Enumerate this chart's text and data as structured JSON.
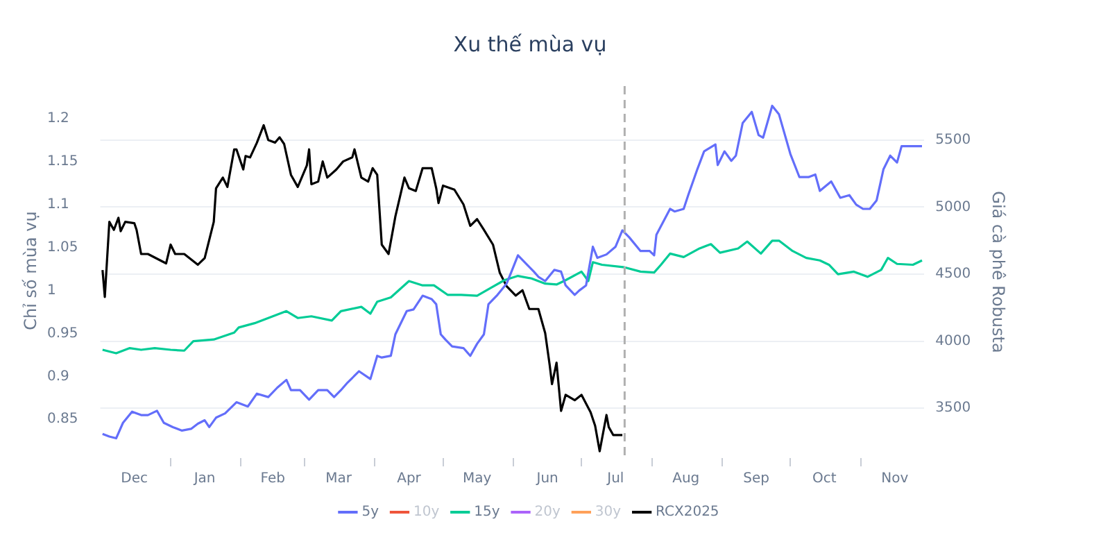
{
  "chart_data": {
    "type": "line",
    "title": "Xu thế mùa vụ",
    "ylabel": "Chỉ số mùa vụ",
    "y2label": "Giá cà phê Robusta",
    "xlim": [
      "2024-12-01",
      "2025-11-29"
    ],
    "xticks": [
      {
        "value": "2024-12-16",
        "label": "Dec"
      },
      {
        "value": "2025-01-01",
        "label": null
      },
      {
        "value": "2025-01-16",
        "label": "Jan"
      },
      {
        "value": "2025-02-01",
        "label": null
      },
      {
        "value": "2025-02-15",
        "label": "Feb"
      },
      {
        "value": "2025-03-01",
        "label": null
      },
      {
        "value": "2025-03-16",
        "label": "Mar"
      },
      {
        "value": "2025-04-01",
        "label": null
      },
      {
        "value": "2025-04-16",
        "label": "Apr"
      },
      {
        "value": "2025-05-01",
        "label": null
      },
      {
        "value": "2025-05-16",
        "label": "May"
      },
      {
        "value": "2025-06-01",
        "label": null
      },
      {
        "value": "2025-06-16",
        "label": "Jun"
      },
      {
        "value": "2025-07-01",
        "label": null
      },
      {
        "value": "2025-07-16",
        "label": "Jul"
      },
      {
        "value": "2025-08-01",
        "label": null
      },
      {
        "value": "2025-08-16",
        "label": "Aug"
      },
      {
        "value": "2025-09-01",
        "label": null
      },
      {
        "value": "2025-09-16",
        "label": "Sep"
      },
      {
        "value": "2025-10-01",
        "label": null
      },
      {
        "value": "2025-10-16",
        "label": "Oct"
      },
      {
        "value": "2025-11-01",
        "label": null
      },
      {
        "value": "2025-11-16",
        "label": "Nov"
      }
    ],
    "ylim": [
      0.805,
      1.238
    ],
    "yticks": [
      0.85,
      0.9,
      0.95,
      1,
      1.05,
      1.1,
      1.15,
      1.2
    ],
    "y2lim": [
      3129,
      5902
    ],
    "y2ticks": [
      3500,
      4000,
      4500,
      5000,
      5500
    ],
    "grid": "y",
    "legend": "bottom",
    "marker": "none",
    "line_style": "solid",
    "ref_lines": [
      {
        "axis": "x",
        "value": "2025-07-20",
        "label": null,
        "color": "#b0b0b0",
        "line_style": "dashed"
      }
    ],
    "series": [
      {
        "name": "5y",
        "color": "#636efa",
        "x": [
          "2024-12-02",
          "2024-12-05",
          "2024-12-08",
          "2024-12-11",
          "2024-12-15",
          "2024-12-19",
          "2024-12-22",
          "2024-12-26",
          "2024-12-29",
          "2025-01-02",
          "2025-01-06",
          "2025-01-10",
          "2025-01-13",
          "2025-01-16",
          "2025-01-18",
          "2025-01-21",
          "2025-01-25",
          "2025-01-30",
          "2025-02-04",
          "2025-02-08",
          "2025-02-13",
          "2025-02-17",
          "2025-02-21",
          "2025-02-23",
          "2025-02-27",
          "2025-03-03",
          "2025-03-07",
          "2025-03-11",
          "2025-03-14",
          "2025-03-17",
          "2025-03-20",
          "2025-03-25",
          "2025-03-30",
          "2025-04-02",
          "2025-04-04",
          "2025-04-08",
          "2025-04-10",
          "2025-04-15",
          "2025-04-18",
          "2025-04-22",
          "2025-04-26",
          "2025-04-28",
          "2025-04-30",
          "2025-05-02",
          "2025-05-05",
          "2025-05-10",
          "2025-05-13",
          "2025-05-16",
          "2025-05-19",
          "2025-05-21",
          "2025-05-25",
          "2025-05-29",
          "2025-05-31",
          "2025-06-03",
          "2025-06-07",
          "2025-06-10",
          "2025-06-12",
          "2025-06-15",
          "2025-06-19",
          "2025-06-22",
          "2025-06-24",
          "2025-06-28",
          "2025-06-30",
          "2025-07-03",
          "2025-07-06",
          "2025-07-08",
          "2025-07-12",
          "2025-07-16",
          "2025-07-19",
          "2025-07-22",
          "2025-07-27",
          "2025-07-31",
          "2025-08-02",
          "2025-08-03",
          "2025-08-09",
          "2025-08-11",
          "2025-08-15",
          "2025-08-17",
          "2025-08-21",
          "2025-08-24",
          "2025-08-29",
          "2025-08-30",
          "2025-09-02",
          "2025-09-05",
          "2025-09-07",
          "2025-09-10",
          "2025-09-14",
          "2025-09-17",
          "2025-09-19",
          "2025-09-23",
          "2025-09-26",
          "2025-10-01",
          "2025-10-05",
          "2025-10-09",
          "2025-10-12",
          "2025-10-14",
          "2025-10-19",
          "2025-10-23",
          "2025-10-27",
          "2025-10-30",
          "2025-11-02",
          "2025-11-05",
          "2025-11-08",
          "2025-11-11",
          "2025-11-14",
          "2025-11-17",
          "2025-11-19",
          "2025-11-28"
        ],
        "values": [
          0.833,
          0.83,
          0.828,
          0.846,
          0.859,
          0.855,
          0.855,
          0.86,
          0.846,
          0.841,
          0.837,
          0.839,
          0.845,
          0.849,
          0.841,
          0.852,
          0.857,
          0.87,
          0.865,
          0.88,
          0.876,
          0.887,
          0.896,
          0.884,
          0.884,
          0.873,
          0.884,
          0.884,
          0.876,
          0.884,
          0.893,
          0.906,
          0.897,
          0.924,
          0.922,
          0.924,
          0.949,
          0.976,
          0.978,
          0.994,
          0.99,
          0.984,
          0.949,
          0.943,
          0.935,
          0.933,
          0.924,
          0.938,
          0.949,
          0.984,
          0.995,
          1.008,
          1.021,
          1.041,
          1.03,
          1.022,
          1.016,
          1.011,
          1.024,
          1.022,
          1.006,
          0.995,
          1,
          1.006,
          1.051,
          1.038,
          1.042,
          1.051,
          1.07,
          1.062,
          1.046,
          1.046,
          1.041,
          1.065,
          1.095,
          1.092,
          1.095,
          1.111,
          1.141,
          1.162,
          1.17,
          1.146,
          1.162,
          1.151,
          1.157,
          1.195,
          1.208,
          1.181,
          1.178,
          1.215,
          1.205,
          1.159,
          1.132,
          1.132,
          1.135,
          1.116,
          1.127,
          1.108,
          1.111,
          1.1,
          1.095,
          1.095,
          1.105,
          1.141,
          1.157,
          1.149,
          1.168,
          1.168
        ]
      },
      {
        "name": "10y",
        "color": "#ef553b"
      },
      {
        "name": "15y",
        "color": "#00cc96",
        "x": [
          "2024-12-02",
          "2024-12-08",
          "2024-12-14",
          "2024-12-19",
          "2024-12-25",
          "2025-01-01",
          "2025-01-07",
          "2025-01-11",
          "2025-01-20",
          "2025-01-29",
          "2025-01-31",
          "2025-02-07",
          "2025-02-15",
          "2025-02-21",
          "2025-02-26",
          "2025-03-04",
          "2025-03-13",
          "2025-03-17",
          "2025-03-26",
          "2025-03-30",
          "2025-04-02",
          "2025-04-08",
          "2025-04-16",
          "2025-04-22",
          "2025-04-27",
          "2025-05-03",
          "2025-05-09",
          "2025-05-16",
          "2025-05-22",
          "2025-05-28",
          "2025-06-03",
          "2025-06-09",
          "2025-06-15",
          "2025-06-20",
          "2025-06-24",
          "2025-07-01",
          "2025-07-04",
          "2025-07-06",
          "2025-07-10",
          "2025-07-20",
          "2025-07-27",
          "2025-08-02",
          "2025-08-05",
          "2025-08-09",
          "2025-08-15",
          "2025-08-22",
          "2025-08-27",
          "2025-08-31",
          "2025-09-08",
          "2025-09-12",
          "2025-09-18",
          "2025-09-23",
          "2025-09-26",
          "2025-10-02",
          "2025-10-08",
          "2025-10-14",
          "2025-10-18",
          "2025-10-22",
          "2025-10-29",
          "2025-11-04",
          "2025-11-10",
          "2025-11-13",
          "2025-11-17",
          "2025-11-24",
          "2025-11-28"
        ],
        "values": [
          0.931,
          0.927,
          0.933,
          0.931,
          0.933,
          0.931,
          0.93,
          0.941,
          0.943,
          0.951,
          0.957,
          0.962,
          0.97,
          0.976,
          0.968,
          0.97,
          0.965,
          0.976,
          0.981,
          0.973,
          0.987,
          0.992,
          1.011,
          1.006,
          1.006,
          0.995,
          0.995,
          0.994,
          1.003,
          1.012,
          1.017,
          1.014,
          1.008,
          1.007,
          1.012,
          1.022,
          1.011,
          1.033,
          1.03,
          1.027,
          1.022,
          1.021,
          1.03,
          1.043,
          1.039,
          1.049,
          1.054,
          1.044,
          1.049,
          1.057,
          1.043,
          1.058,
          1.058,
          1.046,
          1.038,
          1.035,
          1.03,
          1.019,
          1.022,
          1.016,
          1.024,
          1.038,
          1.031,
          1.03,
          1.035
        ]
      },
      {
        "name": "20y",
        "color": "#ab63fa"
      },
      {
        "name": "30y",
        "color": "#ffa15a"
      },
      {
        "name": "RCX2025",
        "color": "#000000",
        "axis": "y2",
        "x": [
          "2024-12-02",
          "2024-12-03",
          "2024-12-05",
          "2024-12-07",
          "2024-12-09",
          "2024-12-10",
          "2024-12-12",
          "2024-12-16",
          "2024-12-17",
          "2024-12-19",
          "2024-12-22",
          "2024-12-30",
          "2025-01-01",
          "2025-01-03",
          "2025-01-07",
          "2025-01-13",
          "2025-01-16",
          "2025-01-20",
          "2025-01-21",
          "2025-01-24",
          "2025-01-26",
          "2025-01-29",
          "2025-01-30",
          "2025-02-02",
          "2025-02-03",
          "2025-02-05",
          "2025-02-08",
          "2025-02-11",
          "2025-02-13",
          "2025-02-16",
          "2025-02-18",
          "2025-02-20",
          "2025-02-23",
          "2025-02-26",
          "2025-03-02",
          "2025-03-03",
          "2025-03-04",
          "2025-03-07",
          "2025-03-09",
          "2025-03-11",
          "2025-03-15",
          "2025-03-18",
          "2025-03-22",
          "2025-03-23",
          "2025-03-26",
          "2025-03-29",
          "2025-03-31",
          "2025-04-02",
          "2025-04-04",
          "2025-04-07",
          "2025-04-10",
          "2025-04-14",
          "2025-04-16",
          "2025-04-19",
          "2025-04-22",
          "2025-04-26",
          "2025-04-28",
          "2025-04-29",
          "2025-05-01",
          "2025-05-06",
          "2025-05-10",
          "2025-05-13",
          "2025-05-16",
          "2025-05-19",
          "2025-05-23",
          "2025-05-26",
          "2025-05-29",
          "2025-06-02",
          "2025-06-05",
          "2025-06-08",
          "2025-06-12",
          "2025-06-15",
          "2025-06-17",
          "2025-06-18",
          "2025-06-20",
          "2025-06-22",
          "2025-06-24",
          "2025-06-28",
          "2025-07-01",
          "2025-07-05",
          "2025-07-07",
          "2025-07-09",
          "2025-07-12",
          "2025-07-13",
          "2025-07-15",
          "2025-07-19"
        ],
        "values": [
          4530,
          4330,
          4890,
          4830,
          4920,
          4820,
          4890,
          4880,
          4830,
          4650,
          4650,
          4580,
          4720,
          4650,
          4650,
          4570,
          4620,
          4890,
          5140,
          5220,
          5150,
          5430,
          5430,
          5280,
          5380,
          5370,
          5480,
          5610,
          5500,
          5480,
          5520,
          5470,
          5240,
          5150,
          5310,
          5430,
          5170,
          5190,
          5340,
          5220,
          5280,
          5340,
          5370,
          5430,
          5220,
          5190,
          5290,
          5240,
          4720,
          4650,
          4930,
          5220,
          5140,
          5120,
          5290,
          5290,
          5140,
          5030,
          5160,
          5130,
          5020,
          4860,
          4910,
          4830,
          4720,
          4510,
          4410,
          4340,
          4380,
          4240,
          4240,
          4060,
          3820,
          3680,
          3840,
          3480,
          3600,
          3560,
          3600,
          3470,
          3370,
          3180,
          3450,
          3360,
          3300,
          3300
        ]
      }
    ]
  }
}
